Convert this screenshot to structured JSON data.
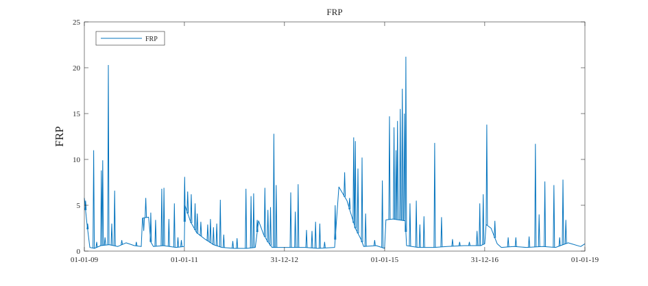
{
  "chart_data": {
    "type": "line",
    "title": "FRP",
    "xlabel": "",
    "ylabel": "FRP",
    "xlim": [
      "2009-01-01",
      "2019-01-01"
    ],
    "ylim": [
      0,
      25
    ],
    "x_tick_labels": [
      "01-01-09",
      "01-01-11",
      "31-12-12",
      "01-01-15",
      "31-12-16",
      "01-01-19"
    ],
    "x_tick_dates": [
      "2009-01-01",
      "2011-01-01",
      "2012-12-31",
      "2015-01-01",
      "2016-12-31",
      "2019-01-01"
    ],
    "y_ticks": [
      0,
      5,
      10,
      15,
      20,
      25
    ],
    "grid": false,
    "legend_position": "top-left",
    "series": [
      {
        "name": "FRP",
        "color": "#0072BD",
        "baseline": [
          [
            "2009-01-01",
            5.8
          ],
          [
            "2009-01-20",
            3.0
          ],
          [
            "2009-02-10",
            0.4
          ],
          [
            "2009-03-15",
            0.3
          ],
          [
            "2009-05-01",
            0.6
          ],
          [
            "2009-07-01",
            0.7
          ],
          [
            "2009-09-01",
            0.5
          ],
          [
            "2009-11-01",
            0.9
          ],
          [
            "2010-01-01",
            0.6
          ],
          [
            "2010-02-20",
            0.5
          ],
          [
            "2010-03-01",
            3.6
          ],
          [
            "2010-04-15",
            3.7
          ],
          [
            "2010-05-01",
            1.0
          ],
          [
            "2010-05-20",
            0.5
          ],
          [
            "2010-08-01",
            0.6
          ],
          [
            "2010-11-01",
            0.4
          ],
          [
            "2010-12-31",
            0.5
          ],
          [
            "2011-01-05",
            5.0
          ],
          [
            "2011-02-15",
            3.2
          ],
          [
            "2011-04-01",
            2.0
          ],
          [
            "2011-06-01",
            1.3
          ],
          [
            "2011-08-01",
            0.7
          ],
          [
            "2011-10-01",
            0.4
          ],
          [
            "2012-01-01",
            0.3
          ],
          [
            "2012-04-01",
            0.3
          ],
          [
            "2012-06-01",
            0.4
          ],
          [
            "2012-06-25",
            3.3
          ],
          [
            "2012-08-01",
            1.8
          ],
          [
            "2012-09-01",
            1.0
          ],
          [
            "2012-10-01",
            0.4
          ],
          [
            "2012-12-31",
            0.4
          ],
          [
            "2013-03-01",
            0.4
          ],
          [
            "2013-06-01",
            0.4
          ],
          [
            "2013-09-01",
            0.3
          ],
          [
            "2014-01-01",
            0.4
          ],
          [
            "2014-02-01",
            7.0
          ],
          [
            "2014-04-01",
            5.5
          ],
          [
            "2014-06-01",
            2.5
          ],
          [
            "2014-07-15",
            1.2
          ],
          [
            "2014-08-01",
            0.5
          ],
          [
            "2014-11-01",
            0.6
          ],
          [
            "2014-12-31",
            0.3
          ],
          [
            "2015-01-10",
            3.4
          ],
          [
            "2015-03-01",
            3.5
          ],
          [
            "2015-06-01",
            3.3
          ],
          [
            "2015-06-10",
            0.6
          ],
          [
            "2015-09-01",
            0.4
          ],
          [
            "2016-01-01",
            0.4
          ],
          [
            "2016-04-01",
            0.5
          ],
          [
            "2016-08-01",
            0.6
          ],
          [
            "2016-12-01",
            0.6
          ],
          [
            "2016-12-31",
            0.8
          ],
          [
            "2017-01-10",
            2.9
          ],
          [
            "2017-02-15",
            2.5
          ],
          [
            "2017-04-01",
            0.8
          ],
          [
            "2017-05-01",
            0.4
          ],
          [
            "2017-08-01",
            0.5
          ],
          [
            "2017-11-01",
            0.4
          ],
          [
            "2018-03-01",
            0.5
          ],
          [
            "2018-06-01",
            0.4
          ],
          [
            "2018-09-01",
            0.9
          ],
          [
            "2018-12-01",
            0.5
          ],
          [
            "2019-01-01",
            0.8
          ]
        ],
        "spikes": [
          [
            "2009-01-10",
            5.5
          ],
          [
            "2009-01-25",
            3.0
          ],
          [
            "2009-03-10",
            11.0
          ],
          [
            "2009-04-01",
            1.0
          ],
          [
            "2009-05-05",
            8.8
          ],
          [
            "2009-05-15",
            9.9
          ],
          [
            "2009-06-01",
            1.5
          ],
          [
            "2009-06-25",
            20.3
          ],
          [
            "2009-07-20",
            3.0
          ],
          [
            "2009-08-10",
            6.6
          ],
          [
            "2009-10-01",
            1.2
          ],
          [
            "2010-01-15",
            1.0
          ],
          [
            "2010-03-10",
            2.2
          ],
          [
            "2010-03-25",
            5.8
          ],
          [
            "2010-05-01",
            4.2
          ],
          [
            "2010-06-05",
            3.4
          ],
          [
            "2010-07-20",
            6.8
          ],
          [
            "2010-08-05",
            6.9
          ],
          [
            "2010-09-10",
            3.5
          ],
          [
            "2010-10-20",
            5.2
          ],
          [
            "2010-11-15",
            1.5
          ],
          [
            "2010-12-10",
            1.2
          ],
          [
            "2011-01-03",
            8.1
          ],
          [
            "2011-01-25",
            6.5
          ],
          [
            "2011-02-20",
            6.2
          ],
          [
            "2011-03-20",
            5.2
          ],
          [
            "2011-04-05",
            4.1
          ],
          [
            "2011-05-01",
            3.2
          ],
          [
            "2011-06-20",
            2.9
          ],
          [
            "2011-07-10",
            3.5
          ],
          [
            "2011-08-01",
            2.6
          ],
          [
            "2011-08-25",
            3.0
          ],
          [
            "2011-09-20",
            5.6
          ],
          [
            "2011-10-15",
            1.8
          ],
          [
            "2011-12-20",
            1.1
          ],
          [
            "2012-01-20",
            1.4
          ],
          [
            "2012-03-25",
            6.8
          ],
          [
            "2012-05-01",
            6.0
          ],
          [
            "2012-05-20",
            6.3
          ],
          [
            "2012-06-15",
            3.4
          ],
          [
            "2012-08-10",
            6.9
          ],
          [
            "2012-09-01",
            4.5
          ],
          [
            "2012-09-20",
            4.8
          ],
          [
            "2012-10-15",
            12.8
          ],
          [
            "2012-11-01",
            7.2
          ],
          [
            "2013-02-15",
            6.4
          ],
          [
            "2013-03-20",
            4.3
          ],
          [
            "2013-04-10",
            7.3
          ],
          [
            "2013-06-10",
            2.3
          ],
          [
            "2013-07-20",
            2.2
          ],
          [
            "2013-08-15",
            3.2
          ],
          [
            "2013-09-15",
            3.0
          ],
          [
            "2013-10-20",
            1.0
          ],
          [
            "2014-01-05",
            5.0
          ],
          [
            "2014-03-15",
            8.6
          ],
          [
            "2014-04-20",
            5.8
          ],
          [
            "2014-05-20",
            12.4
          ],
          [
            "2014-06-01",
            12.0
          ],
          [
            "2014-06-20",
            9.0
          ],
          [
            "2014-07-20",
            10.2
          ],
          [
            "2014-08-15",
            4.1
          ],
          [
            "2014-10-20",
            1.2
          ],
          [
            "2014-12-15",
            7.7
          ],
          [
            "2015-02-05",
            14.7
          ],
          [
            "2015-03-10",
            13.5
          ],
          [
            "2015-03-25",
            11.0
          ],
          [
            "2015-04-05",
            14.2
          ],
          [
            "2015-04-25",
            15.5
          ],
          [
            "2015-05-10",
            17.7
          ],
          [
            "2015-05-25",
            15.0
          ],
          [
            "2015-06-05",
            21.2
          ],
          [
            "2015-07-05",
            5.2
          ],
          [
            "2015-08-20",
            5.5
          ],
          [
            "2015-09-15",
            2.9
          ],
          [
            "2015-10-15",
            3.8
          ],
          [
            "2016-01-01",
            11.8
          ],
          [
            "2016-02-20",
            3.7
          ],
          [
            "2016-05-10",
            1.3
          ],
          [
            "2016-07-01",
            1.0
          ],
          [
            "2016-09-10",
            1.0
          ],
          [
            "2016-11-05",
            2.2
          ],
          [
            "2016-11-25",
            5.2
          ],
          [
            "2016-12-20",
            6.2
          ],
          [
            "2017-01-15",
            13.8
          ],
          [
            "2017-03-15",
            3.3
          ],
          [
            "2017-06-20",
            1.5
          ],
          [
            "2017-08-15",
            1.5
          ],
          [
            "2017-11-20",
            1.6
          ],
          [
            "2018-01-05",
            11.7
          ],
          [
            "2018-02-01",
            4.0
          ],
          [
            "2018-03-15",
            7.6
          ],
          [
            "2018-05-20",
            7.2
          ],
          [
            "2018-07-01",
            1.5
          ],
          [
            "2018-07-25",
            7.8
          ],
          [
            "2018-08-15",
            3.4
          ]
        ]
      }
    ]
  }
}
